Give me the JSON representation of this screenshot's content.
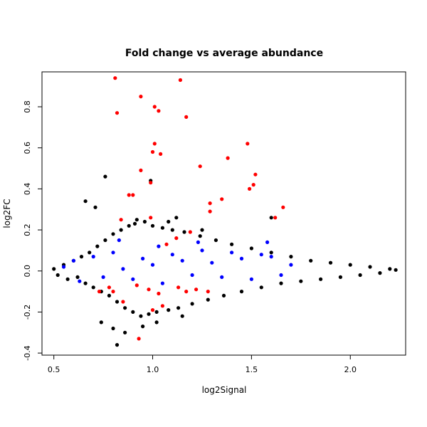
{
  "chart_data": {
    "type": "scatter",
    "title": "Fold change vs average abundance",
    "xlabel": "log2Signal",
    "ylabel": "log2FC",
    "xlim": [
      0.44,
      2.28
    ],
    "ylim": [
      -0.41,
      0.97
    ],
    "x_ticks": [
      {
        "value": 0.5,
        "label": "0.5"
      },
      {
        "value": 1.0,
        "label": "1.0"
      },
      {
        "value": 1.5,
        "label": "1.5"
      },
      {
        "value": 2.0,
        "label": "2.0"
      }
    ],
    "y_ticks": [
      {
        "value": -0.4,
        "label": "-0.4"
      },
      {
        "value": -0.2,
        "label": "-0.2"
      },
      {
        "value": 0.0,
        "label": "0.0"
      },
      {
        "value": 0.2,
        "label": "0.2"
      },
      {
        "value": 0.4,
        "label": "0.4"
      },
      {
        "value": 0.6,
        "label": "0.6"
      },
      {
        "value": 0.8,
        "label": "0.8"
      }
    ],
    "grid": false,
    "legend": "none",
    "series": [
      {
        "color": "#000000",
        "points": [
          [
            0.5,
            0.01
          ],
          [
            0.52,
            -0.02
          ],
          [
            0.55,
            0.03
          ],
          [
            0.57,
            -0.04
          ],
          [
            0.6,
            0.05
          ],
          [
            0.62,
            -0.03
          ],
          [
            0.64,
            0.07
          ],
          [
            0.66,
            -0.06
          ],
          [
            0.68,
            0.09
          ],
          [
            0.7,
            -0.08
          ],
          [
            0.72,
            0.12
          ],
          [
            0.74,
            -0.1
          ],
          [
            0.76,
            0.15
          ],
          [
            0.78,
            -0.12
          ],
          [
            0.8,
            0.18
          ],
          [
            0.82,
            -0.15
          ],
          [
            0.84,
            0.2
          ],
          [
            0.86,
            -0.18
          ],
          [
            0.88,
            0.22
          ],
          [
            0.9,
            -0.2
          ],
          [
            0.92,
            0.25
          ],
          [
            0.94,
            -0.22
          ],
          [
            0.96,
            0.24
          ],
          [
            0.98,
            -0.21
          ],
          [
            1.0,
            0.22
          ],
          [
            1.02,
            -0.2
          ],
          [
            1.05,
            0.21
          ],
          [
            1.08,
            -0.19
          ],
          [
            1.1,
            0.2
          ],
          [
            1.13,
            -0.18
          ],
          [
            1.16,
            0.19
          ],
          [
            1.2,
            -0.16
          ],
          [
            1.24,
            0.17
          ],
          [
            1.28,
            -0.14
          ],
          [
            1.32,
            0.15
          ],
          [
            1.36,
            -0.12
          ],
          [
            1.4,
            0.13
          ],
          [
            1.45,
            -0.1
          ],
          [
            1.5,
            0.11
          ],
          [
            1.55,
            -0.08
          ],
          [
            1.6,
            0.09
          ],
          [
            1.65,
            -0.06
          ],
          [
            1.7,
            0.07
          ],
          [
            1.75,
            -0.05
          ],
          [
            1.8,
            0.05
          ],
          [
            1.85,
            -0.04
          ],
          [
            1.9,
            0.04
          ],
          [
            1.95,
            -0.03
          ],
          [
            2.0,
            0.03
          ],
          [
            2.05,
            -0.02
          ],
          [
            2.1,
            0.02
          ],
          [
            2.15,
            -0.01
          ],
          [
            2.2,
            0.01
          ],
          [
            2.23,
            0.005
          ],
          [
            0.76,
            0.46
          ],
          [
            0.66,
            0.34
          ],
          [
            0.71,
            0.31
          ],
          [
            0.82,
            -0.36
          ],
          [
            0.86,
            -0.3
          ],
          [
            0.99,
            0.44
          ],
          [
            1.08,
            0.24
          ],
          [
            1.12,
            0.26
          ],
          [
            0.91,
            0.23
          ],
          [
            0.95,
            -0.27
          ],
          [
            1.02,
            -0.25
          ],
          [
            0.74,
            -0.25
          ],
          [
            1.25,
            0.2
          ],
          [
            1.6,
            0.26
          ],
          [
            1.15,
            -0.22
          ],
          [
            0.8,
            -0.28
          ]
        ]
      },
      {
        "color": "#0000ff",
        "points": [
          [
            0.55,
            0.02
          ],
          [
            0.6,
            0.05
          ],
          [
            0.63,
            -0.05
          ],
          [
            0.7,
            0.07
          ],
          [
            0.75,
            -0.03
          ],
          [
            0.8,
            0.09
          ],
          [
            0.85,
            0.01
          ],
          [
            0.9,
            -0.04
          ],
          [
            0.95,
            0.06
          ],
          [
            1.0,
            0.03
          ],
          [
            1.05,
            -0.06
          ],
          [
            1.1,
            0.08
          ],
          [
            1.15,
            0.05
          ],
          [
            1.2,
            -0.02
          ],
          [
            1.25,
            0.1
          ],
          [
            1.3,
            0.04
          ],
          [
            1.35,
            -0.03
          ],
          [
            1.4,
            0.09
          ],
          [
            1.45,
            0.06
          ],
          [
            1.5,
            -0.04
          ],
          [
            1.55,
            0.08
          ],
          [
            1.6,
            0.07
          ],
          [
            1.65,
            -0.02
          ],
          [
            1.58,
            0.14
          ],
          [
            1.7,
            0.03
          ],
          [
            0.83,
            0.15
          ],
          [
            1.03,
            0.12
          ],
          [
            1.23,
            0.14
          ]
        ]
      },
      {
        "color": "#ff0000",
        "points": [
          [
            0.81,
            0.94
          ],
          [
            0.82,
            0.77
          ],
          [
            0.94,
            0.85
          ],
          [
            1.01,
            0.8
          ],
          [
            1.03,
            0.78
          ],
          [
            1.14,
            0.93
          ],
          [
            1.17,
            0.75
          ],
          [
            1.0,
            0.58
          ],
          [
            1.01,
            0.62
          ],
          [
            1.04,
            0.57
          ],
          [
            0.94,
            0.49
          ],
          [
            0.99,
            0.43
          ],
          [
            0.88,
            0.37
          ],
          [
            0.9,
            0.37
          ],
          [
            1.24,
            0.51
          ],
          [
            1.38,
            0.55
          ],
          [
            1.48,
            0.62
          ],
          [
            1.52,
            0.47
          ],
          [
            1.51,
            0.42
          ],
          [
            1.49,
            0.4
          ],
          [
            1.35,
            0.35
          ],
          [
            1.29,
            0.33
          ],
          [
            1.29,
            0.29
          ],
          [
            1.66,
            0.31
          ],
          [
            1.62,
            0.26
          ],
          [
            0.84,
            0.25
          ],
          [
            0.99,
            0.26
          ],
          [
            1.19,
            0.19
          ],
          [
            1.12,
            0.16
          ],
          [
            1.07,
            0.13
          ],
          [
            0.78,
            -0.08
          ],
          [
            0.8,
            -0.1
          ],
          [
            0.92,
            -0.07
          ],
          [
            0.98,
            -0.09
          ],
          [
            1.03,
            -0.11
          ],
          [
            1.13,
            -0.08
          ],
          [
            1.17,
            -0.1
          ],
          [
            1.22,
            -0.09
          ],
          [
            1.28,
            -0.1
          ],
          [
            1.05,
            -0.17
          ],
          [
            0.85,
            -0.15
          ],
          [
            1.0,
            -0.19
          ],
          [
            0.93,
            -0.33
          ],
          [
            0.73,
            -0.1
          ]
        ]
      }
    ]
  }
}
